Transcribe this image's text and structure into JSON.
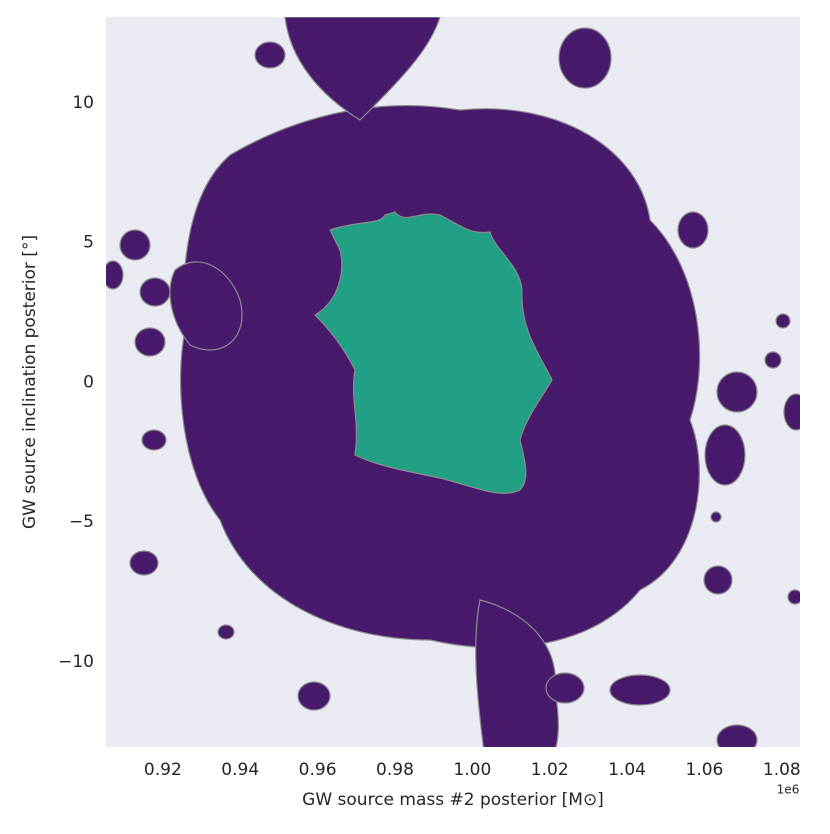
{
  "chart_data": {
    "type": "contour",
    "x_label": "GW source mass #2 posterior [M⊙]",
    "y_label": "GW source inclination posterior [°]",
    "x_offset_label": "1e6",
    "xlim": [
      0.9053,
      1.0847
    ],
    "ylim": [
      -13.05,
      13.08
    ],
    "xticks": [
      0.92,
      0.94,
      0.96,
      0.98,
      {
        "value": 1,
        "label": "1.00"
      },
      1.02,
      1.04,
      1.06,
      1.08
    ],
    "yticks": [
      {
        "value": -10,
        "label": "−10"
      },
      {
        "value": -5,
        "label": "−5"
      },
      0,
      5,
      10
    ],
    "background": "#eaeaf2",
    "edge_color": "#8c8c8c",
    "level_colors": [
      "#481a6c",
      "#22a085"
    ]
  }
}
